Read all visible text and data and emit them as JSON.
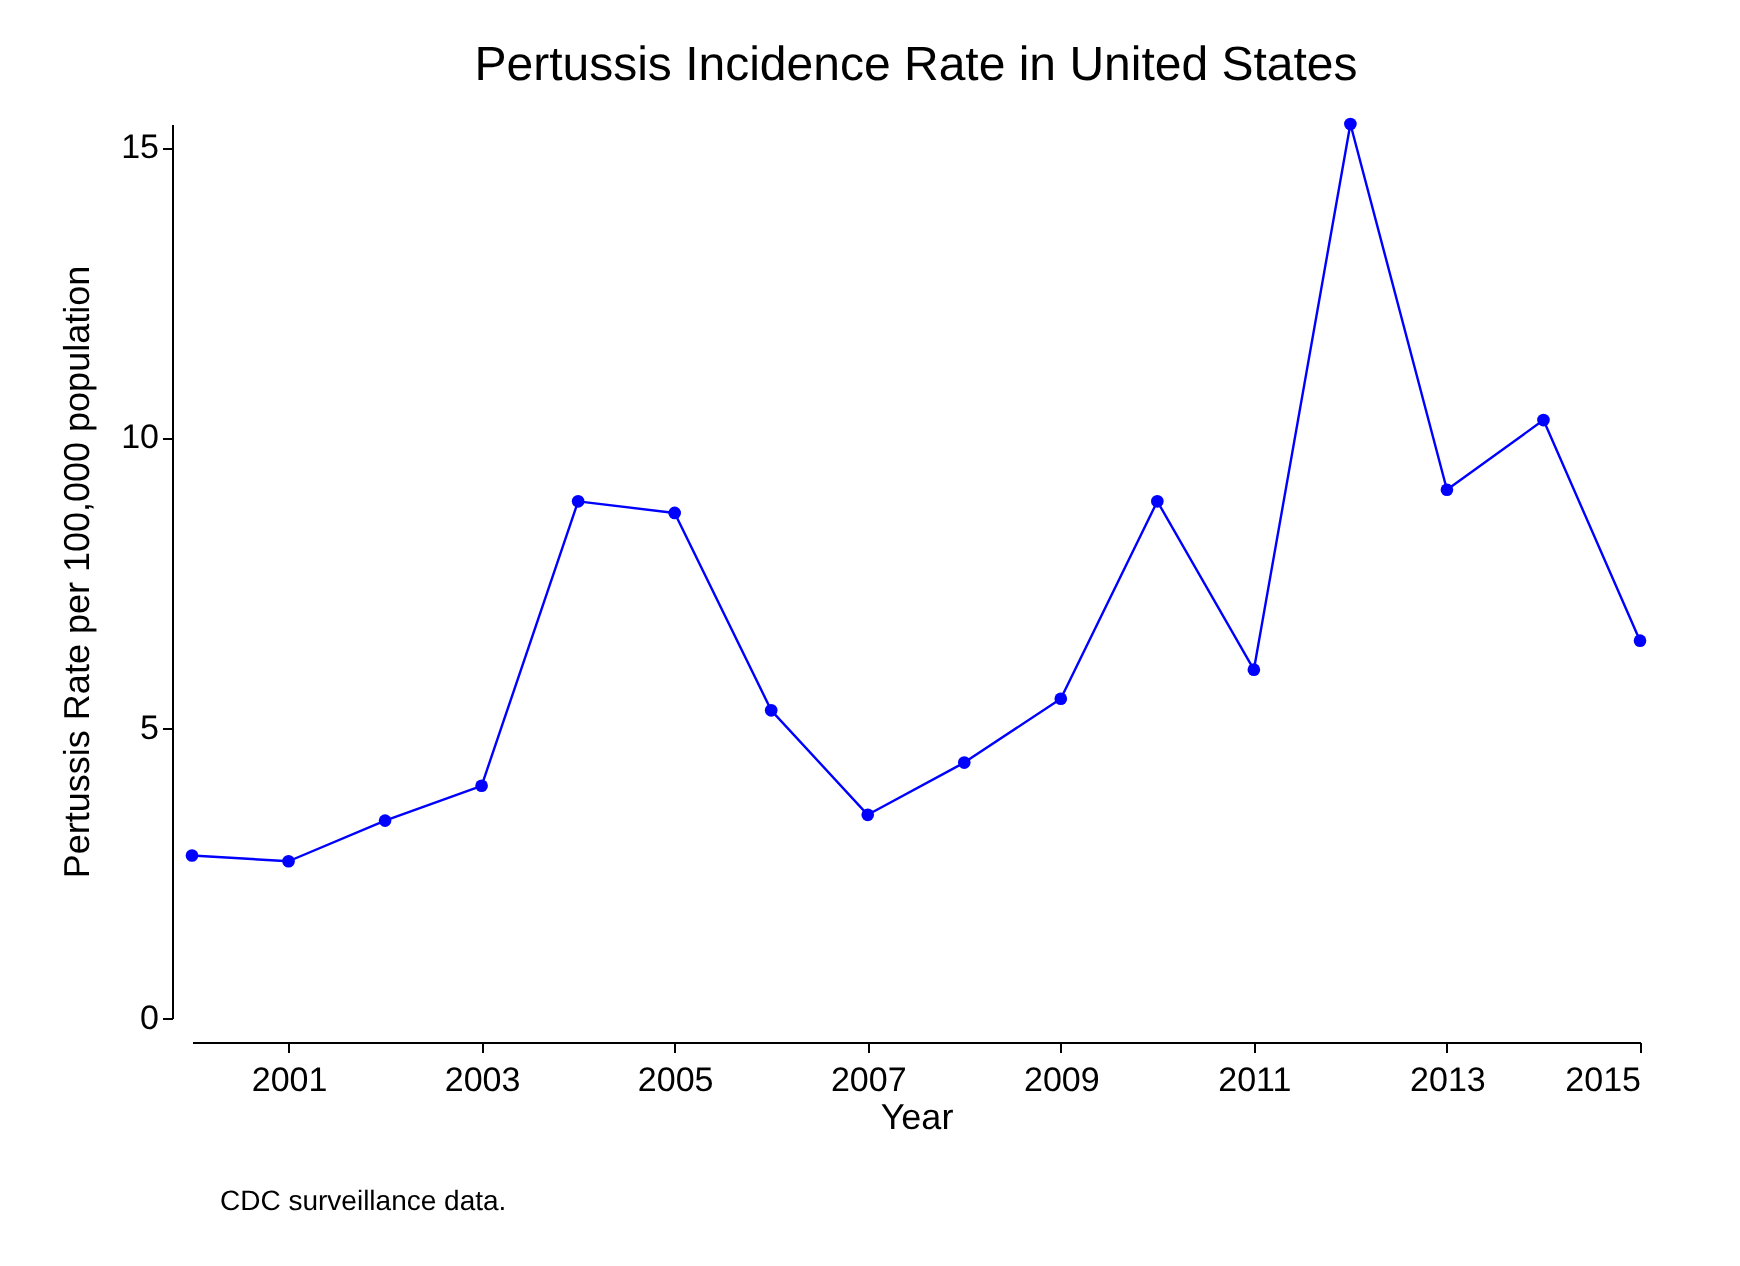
{
  "chart_data": {
    "type": "line",
    "title": "Pertussis Incidence Rate in United States",
    "xlabel": "Year",
    "ylabel": "Pertussis Rate per 100,000 population",
    "x": [
      2000,
      2001,
      2002,
      2003,
      2004,
      2005,
      2006,
      2007,
      2008,
      2009,
      2010,
      2011,
      2012,
      2013,
      2014,
      2015
    ],
    "series": [
      {
        "color": "#0000ff",
        "values": [
          2.8,
          2.7,
          3.4,
          4.0,
          8.9,
          8.7,
          5.3,
          3.5,
          4.4,
          5.5,
          8.9,
          6.0,
          15.4,
          9.1,
          10.3,
          6.5
        ]
      }
    ],
    "xlim": [
      2000,
      2015
    ],
    "xticks": [
      2001,
      2003,
      2005,
      2007,
      2009,
      2011,
      2013,
      2015
    ],
    "ylim": [
      0,
      15.4
    ],
    "yticks": [
      0,
      5,
      10,
      15
    ],
    "grid": false,
    "legend": false,
    "marker": "circle",
    "line_style": "solid",
    "annotations": [
      "CDC surveillance data."
    ]
  }
}
